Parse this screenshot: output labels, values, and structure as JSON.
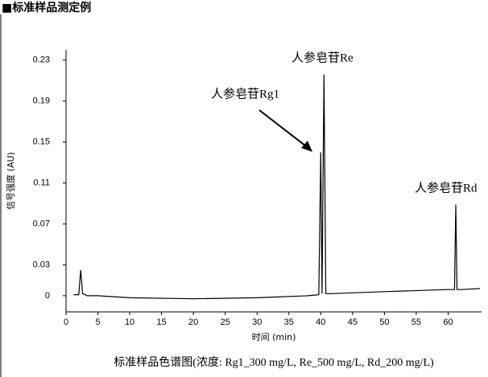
{
  "chart_data": {
    "type": "line",
    "title": "■标准样品测定例",
    "caption": "标准样品色谱图(浓度: Rg1_300 mg/L, Re_500 mg/L, Rd_200 mg/L)",
    "x_label": "时间 (min)",
    "y_label": "信号强度 (AU)",
    "annotations": [
      "人参皂苷Re",
      "人参皂苷Rg1",
      "人参皂苷Rd"
    ],
    "x": [
      1.2,
      2.0,
      2.3,
      2.6,
      3.0,
      3.3,
      5,
      10,
      20,
      30,
      38,
      39.7,
      40.0,
      40.2,
      40.5,
      40.8,
      41.5,
      50,
      60,
      61.0,
      61.2,
      61.4,
      62,
      65
    ],
    "values": [
      0.001,
      0.001,
      0.025,
      0.002,
      0.001,
      0.0,
      0.0,
      -0.002,
      -0.003,
      -0.002,
      0.0,
      0.001,
      0.14,
      0.002,
      0.216,
      0.002,
      0.002,
      0.004,
      0.006,
      0.006,
      0.089,
      0.006,
      0.006,
      0.007
    ],
    "color": "#000000",
    "xlim": [
      0,
      65
    ],
    "xticks": [
      0,
      5,
      10,
      15,
      20,
      25,
      30,
      35,
      40,
      45,
      50,
      55,
      60
    ],
    "ylim": [
      -0.015,
      0.24
    ],
    "yticks": [
      0,
      0.03,
      0.07,
      0.11,
      0.15,
      0.19,
      0.23
    ],
    "grid": false
  }
}
